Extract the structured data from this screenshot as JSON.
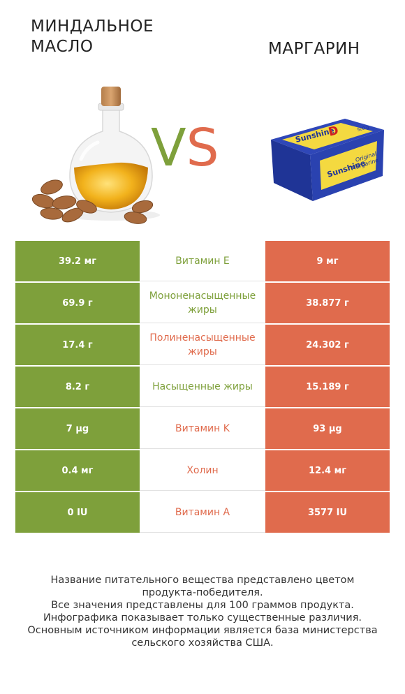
{
  "left_product": {
    "title": "МИНДАЛЬНОЕ МАСЛО",
    "color": "#7ea03b"
  },
  "right_product": {
    "title": "МАРГАРИН",
    "color": "#e06b4d"
  },
  "vs": {
    "v": "V",
    "s": "S"
  },
  "packaging": {
    "brand": "Sunshine",
    "letter": "D",
    "label_line1": "Original",
    "label_line2": "Margarine",
    "weight": "500 g"
  },
  "rows": [
    {
      "left": "39.2 мг",
      "nutrient": "Витамин E",
      "right": "9 мг",
      "winner": "green"
    },
    {
      "left": "69.9 г",
      "nutrient": "Мононенасыщенные жиры",
      "right": "38.877 г",
      "winner": "green"
    },
    {
      "left": "17.4 г",
      "nutrient": "Полиненасыщенные жиры",
      "right": "24.302 г",
      "winner": "orange"
    },
    {
      "left": "8.2 г",
      "nutrient": "Насыщенные жиры",
      "right": "15.189 г",
      "winner": "green"
    },
    {
      "left": "7 µg",
      "nutrient": "Витамин K",
      "right": "93 µg",
      "winner": "orange"
    },
    {
      "left": "0.4 мг",
      "nutrient": "Холин",
      "right": "12.4 мг",
      "winner": "orange"
    },
    {
      "left": "0 IU",
      "nutrient": "Витамин A",
      "right": "3577 IU",
      "winner": "orange"
    }
  ],
  "footer": {
    "line1": "Название питательного вещества представлено цветом",
    "line2": "продукта-победителя.",
    "line3": "Все значения представлены для 100 граммов продукта.",
    "line4": "Инфографика показывает только существенные различия.",
    "line5": "Основным источником информации является база министерства",
    "line6": "сельского хозяйства США."
  }
}
